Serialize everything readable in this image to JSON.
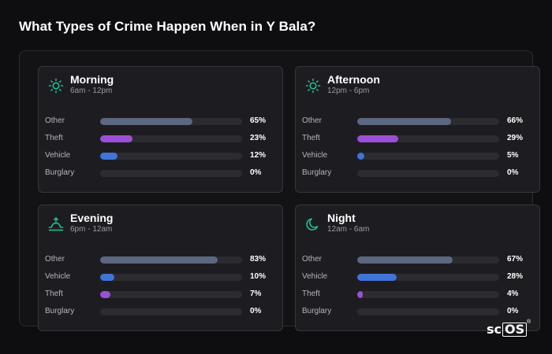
{
  "title": "What Types of Crime Happen When in Y Bala?",
  "brand": {
    "text_left": "sc",
    "text_box": "OS",
    "reg": "®"
  },
  "colors": {
    "other": "#5c6780",
    "theft": "#9b4fd6",
    "vehicle": "#3f74d8",
    "burglary": "#2b2b30",
    "icon": "#1fc49a"
  },
  "cards": [
    {
      "title": "Morning",
      "subtitle": "6am - 12pm",
      "icon": "sun-icon",
      "rows": [
        {
          "label": "Other",
          "percent": 65,
          "value": "65%",
          "kind": "other"
        },
        {
          "label": "Theft",
          "percent": 23,
          "value": "23%",
          "kind": "theft"
        },
        {
          "label": "Vehicle",
          "percent": 12,
          "value": "12%",
          "kind": "vehicle"
        },
        {
          "label": "Burglary",
          "percent": 0,
          "value": "0%",
          "kind": "burglary"
        }
      ]
    },
    {
      "title": "Afternoon",
      "subtitle": "12pm - 6pm",
      "icon": "sun-icon",
      "rows": [
        {
          "label": "Other",
          "percent": 66,
          "value": "66%",
          "kind": "other"
        },
        {
          "label": "Theft",
          "percent": 29,
          "value": "29%",
          "kind": "theft"
        },
        {
          "label": "Vehicle",
          "percent": 5,
          "value": "5%",
          "kind": "vehicle"
        },
        {
          "label": "Burglary",
          "percent": 0,
          "value": "0%",
          "kind": "burglary"
        }
      ]
    },
    {
      "title": "Evening",
      "subtitle": "6pm - 12am",
      "icon": "sunset-icon",
      "rows": [
        {
          "label": "Other",
          "percent": 83,
          "value": "83%",
          "kind": "other"
        },
        {
          "label": "Vehicle",
          "percent": 10,
          "value": "10%",
          "kind": "vehicle"
        },
        {
          "label": "Theft",
          "percent": 7,
          "value": "7%",
          "kind": "theft"
        },
        {
          "label": "Burglary",
          "percent": 0,
          "value": "0%",
          "kind": "burglary"
        }
      ]
    },
    {
      "title": "Night",
      "subtitle": "12am - 6am",
      "icon": "moon-icon",
      "rows": [
        {
          "label": "Other",
          "percent": 67,
          "value": "67%",
          "kind": "other"
        },
        {
          "label": "Vehicle",
          "percent": 28,
          "value": "28%",
          "kind": "vehicle"
        },
        {
          "label": "Theft",
          "percent": 4,
          "value": "4%",
          "kind": "theft"
        },
        {
          "label": "Burglary",
          "percent": 0,
          "value": "0%",
          "kind": "burglary"
        }
      ]
    }
  ]
}
